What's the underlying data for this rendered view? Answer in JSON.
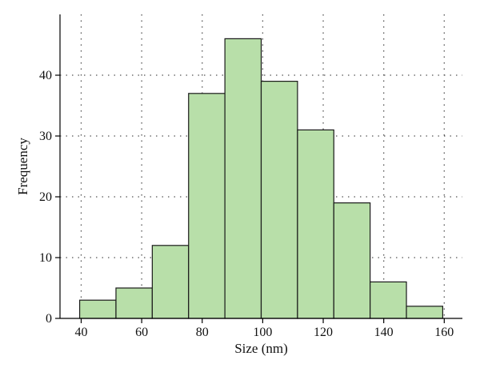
{
  "chart_data": {
    "type": "bar",
    "style": "histogram",
    "title": "",
    "xlabel": "Size (nm)",
    "ylabel": "Frequency",
    "bin_edges": [
      39.5,
      51.5,
      63.5,
      75.5,
      87.5,
      99.5,
      111.5,
      123.5,
      135.5,
      147.5,
      159.5
    ],
    "values": [
      3,
      5,
      12,
      37,
      46,
      39,
      31,
      19,
      6,
      2
    ],
    "xlim": [
      33,
      166
    ],
    "ylim": [
      0,
      50
    ],
    "x_ticks": [
      40,
      60,
      80,
      100,
      120,
      140,
      160
    ],
    "y_ticks": [
      0,
      10,
      20,
      30,
      40
    ],
    "x_tick_labels": [
      "40",
      "60",
      "80",
      "100",
      "120",
      "140",
      "160"
    ],
    "y_tick_labels": [
      "0",
      "10",
      "20",
      "30",
      "40"
    ],
    "grid": true,
    "bar_color": "#b8dfa9",
    "edge_color": "#1a1a1a"
  }
}
